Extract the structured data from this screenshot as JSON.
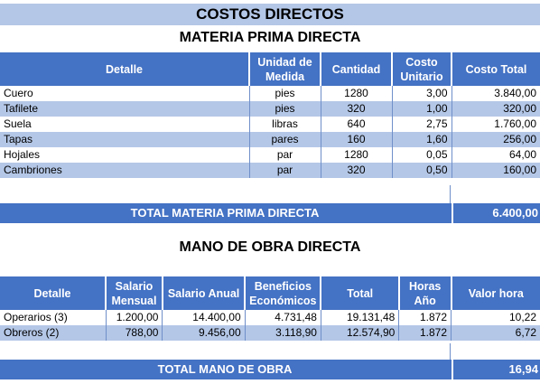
{
  "title": "COSTOS DIRECTOS",
  "materia_prima": {
    "heading": "MATERIA PRIMA DIRECTA",
    "headers": [
      "Detalle",
      "Unidad de Medida",
      "Cantidad",
      "Costo Unitario",
      "Costo Total"
    ],
    "rows": [
      [
        "Cuero",
        "pies",
        "1280",
        "3,00",
        "3.840,00"
      ],
      [
        "Tafilete",
        "pies",
        "320",
        "1,00",
        "320,00"
      ],
      [
        "Suela",
        "libras",
        "640",
        "2,75",
        "1.760,00"
      ],
      [
        "Tapas",
        "pares",
        "160",
        "1,60",
        "256,00"
      ],
      [
        "Hojales",
        "par",
        "1280",
        "0,05",
        "64,00"
      ],
      [
        "Cambriones",
        "par",
        "320",
        "0,50",
        "160,00"
      ]
    ],
    "total_label": "TOTAL MATERIA PRIMA DIRECTA",
    "total_value": "6.400,00"
  },
  "mano_obra": {
    "heading": "MANO DE OBRA DIRECTA",
    "headers": [
      "Detalle",
      "Salario Mensual",
      "Salario Anual",
      "Beneficios Económicos",
      "Total",
      "Horas Año",
      "Valor hora"
    ],
    "rows": [
      [
        "Operarios (3)",
        "1.200,00",
        "14.400,00",
        "4.731,48",
        "19.131,48",
        "1.872",
        "10,22"
      ],
      [
        "Obreros (2)",
        "788,00",
        "9.456,00",
        "3.118,90",
        "12.574,90",
        "1.872",
        "6,72"
      ]
    ],
    "total_label": "TOTAL MANO DE OBRA",
    "total_value": "16,94"
  },
  "colors": {
    "header_blue": "#4472c4",
    "light_blue": "#b4c7e7"
  }
}
